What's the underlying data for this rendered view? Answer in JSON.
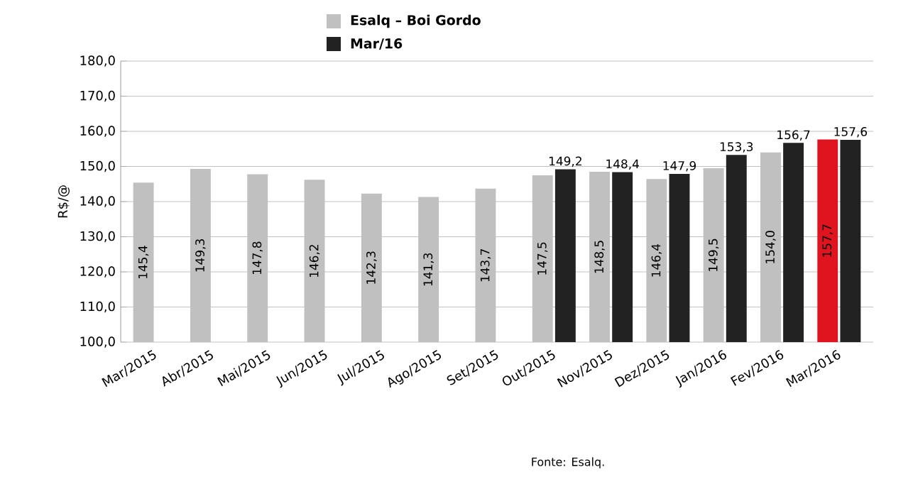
{
  "chart_data": {
    "type": "bar",
    "categories": [
      "Mar/2015",
      "Abr/2015",
      "Mai/2015",
      "Jun/2015",
      "Jul/2015",
      "Ago/2015",
      "Set/2015",
      "Out/2015",
      "Nov/2015",
      "Dez/2015",
      "Jan/2016",
      "Fev/2016",
      "Mar/2016"
    ],
    "series": [
      {
        "name": "Esalq – Boi Gordo",
        "color": "#c0c0c0",
        "colors": [
          "#c0c0c0",
          "#c0c0c0",
          "#c0c0c0",
          "#c0c0c0",
          "#c0c0c0",
          "#c0c0c0",
          "#c0c0c0",
          "#c0c0c0",
          "#c0c0c0",
          "#c0c0c0",
          "#c0c0c0",
          "#c0c0c0",
          "#e0141e"
        ],
        "values": [
          145.4,
          149.3,
          147.8,
          146.2,
          142.3,
          141.3,
          143.7,
          147.5,
          148.5,
          146.4,
          149.5,
          154.0,
          157.7
        ],
        "value_labels": [
          "145,4",
          "149,3",
          "147,8",
          "146,2",
          "142,3",
          "141,3",
          "143,7",
          "147,5",
          "148,5",
          "146,4",
          "149,5",
          "154,0",
          "157,7"
        ]
      },
      {
        "name": "Mar/16",
        "color": "#222222",
        "values": [
          null,
          null,
          null,
          null,
          null,
          null,
          null,
          149.2,
          148.4,
          147.9,
          153.3,
          156.7,
          157.6
        ],
        "value_labels": [
          null,
          null,
          null,
          null,
          null,
          null,
          null,
          "149,2",
          "148,4",
          "147,9",
          "153,3",
          "156,7",
          "157,6"
        ]
      }
    ],
    "ylabel": "R$/@",
    "ylim": [
      100,
      180
    ],
    "yticks": [
      {
        "value": 100,
        "label": "100,0"
      },
      {
        "value": 110,
        "label": "110,0"
      },
      {
        "value": 120,
        "label": "120,0"
      },
      {
        "value": 130,
        "label": "130,0"
      },
      {
        "value": 140,
        "label": "140,0"
      },
      {
        "value": 150,
        "label": "150,0"
      },
      {
        "value": 160,
        "label": "160,0"
      },
      {
        "value": 170,
        "label": "170,0"
      },
      {
        "value": 180,
        "label": "180,0"
      }
    ],
    "grid": "y",
    "legend": "top",
    "annotations": [
      "Fonte: Esalq."
    ]
  }
}
